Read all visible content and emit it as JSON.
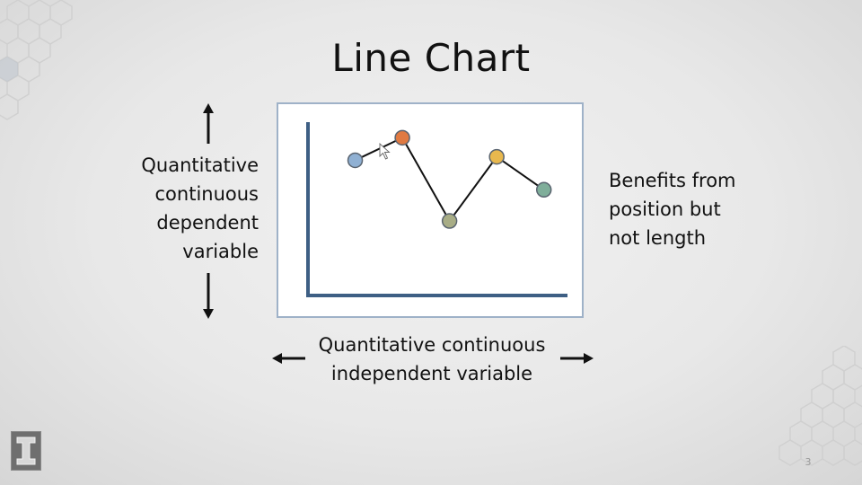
{
  "slide": {
    "title": "Line Chart",
    "y_axis_label_lines": [
      "Quantitative",
      "continuous",
      "dependent",
      "variable"
    ],
    "x_axis_label_lines": [
      "Quantitative continuous",
      "independent variable"
    ],
    "note_lines": [
      "Benefits from",
      "position but",
      "not length"
    ],
    "slide_number": "3"
  },
  "colors": {
    "axis": "#3e5f84",
    "line": "#111111",
    "frame_border": "#9fb2c8"
  },
  "chart_data": {
    "type": "line",
    "title": "",
    "xlabel": "Quantitative continuous independent variable",
    "ylabel": "Quantitative continuous dependent variable",
    "x": [
      1,
      2,
      3,
      4,
      5
    ],
    "ylim": [
      0,
      10
    ],
    "xlim": [
      0,
      5.5
    ],
    "series": [
      {
        "values": [
          7.8,
          9.1,
          4.3,
          8.0,
          6.1
        ],
        "point_colors": [
          "#8fb0d3",
          "#e07a42",
          "#a8ad86",
          "#e8b84e",
          "#7fae9a"
        ]
      }
    ],
    "grid": false,
    "legend": "none"
  },
  "icons": {
    "logo": "university-block-i-logo",
    "arrows": [
      "arrow-up-icon",
      "arrow-down-icon",
      "arrow-left-icon",
      "arrow-right-icon"
    ]
  }
}
